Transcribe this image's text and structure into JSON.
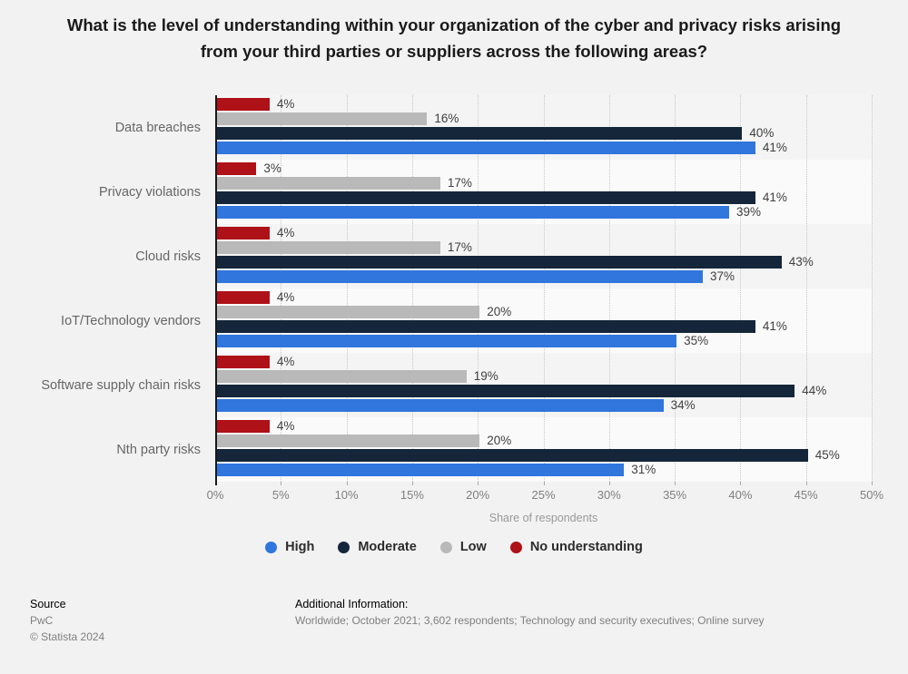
{
  "title": "What is the level of understanding within your organization of the cyber and privacy risks arising from your third parties or suppliers across the following areas?",
  "chart_data": {
    "type": "bar",
    "orientation": "horizontal",
    "title": "What is the level of understanding within your organization of the cyber and privacy risks arising from your third parties or suppliers across the following areas?",
    "categories": [
      "Data breaches",
      "Privacy violations",
      "Cloud risks",
      "IoT/Technology vendors",
      "Software supply chain risks",
      "Nth party risks"
    ],
    "series": [
      {
        "name": "High",
        "color": "#3076dd",
        "values": [
          41,
          39,
          37,
          35,
          34,
          31
        ]
      },
      {
        "name": "Moderate",
        "color": "#15263a",
        "values": [
          40,
          41,
          43,
          41,
          44,
          45
        ]
      },
      {
        "name": "Low",
        "color": "#b9b9b9",
        "values": [
          16,
          17,
          17,
          20,
          19,
          20
        ]
      },
      {
        "name": "No understanding",
        "color": "#ae1117",
        "values": [
          4,
          3,
          4,
          4,
          4,
          4
        ]
      }
    ],
    "bar_order_top_to_bottom": [
      "No understanding",
      "Low",
      "Moderate",
      "High"
    ],
    "value_suffix": "%",
    "xlabel": "Share of respondents",
    "xlim": [
      0,
      50
    ],
    "xtick_step": 5,
    "xtick_suffix": "%",
    "grid": "vertical-dotted",
    "legend_position": "bottom",
    "band_colors": [
      "#f4f4f4",
      "#fafafa"
    ]
  },
  "footer": {
    "source_label": "Source",
    "source_value": "PwC",
    "copyright": "© Statista 2024",
    "additional_info_label": "Additional Information:",
    "additional_info_value": "Worldwide; October 2021; 3,602 respondents; Technology and security executives; Online survey"
  }
}
